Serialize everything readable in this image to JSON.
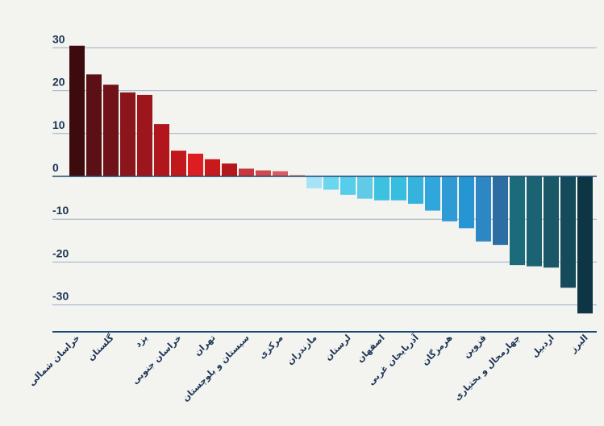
{
  "chart_data": {
    "type": "bar",
    "title": "",
    "xlabel": "",
    "ylabel": "",
    "ylim": [
      -36,
      36
    ],
    "grid": true,
    "y_ticks": [
      30,
      20,
      10,
      0,
      -10,
      -20,
      -30
    ],
    "y_tick_labels": [
      "30",
      "20",
      "10",
      "0",
      "-10",
      "-20",
      "-30"
    ],
    "categories": [
      "خراسان شمالی",
      "",
      "گلستان",
      "",
      "یزد",
      "",
      "خراسان جنوبی",
      "",
      "تهران",
      "",
      "سیستان و بلوچستان",
      "",
      "مرکزی",
      "",
      "مازندران",
      "",
      "لرستان",
      "",
      "اصفهان",
      "",
      "آذربایجان غربی",
      "",
      "هرمزگان",
      "",
      "قزوین",
      "",
      "چهارمحال و بختیاری",
      "",
      "اردبیل",
      "",
      "البرز"
    ],
    "values": [
      30.5,
      23.8,
      21.4,
      19.6,
      19.0,
      12.2,
      6.0,
      5.3,
      4.0,
      3.0,
      1.8,
      1.4,
      1.2,
      0.3,
      -2.8,
      -3.1,
      -4.3,
      -5.2,
      -5.6,
      -5.6,
      -6.4,
      -8.0,
      -10.5,
      -12.1,
      -15.2,
      -16.0,
      -20.7,
      -21.0,
      -21.3,
      -26.0,
      -32.0
    ],
    "colors": [
      "#3d0a0d",
      "#5a1014",
      "#6f1318",
      "#8a151a",
      "#9d161b",
      "#b0161b",
      "#c1181c",
      "#dd1d20",
      "#c8191c",
      "#b4181b",
      "#c7373d",
      "#d24a50",
      "#d95a61",
      "#e17f86",
      "#a7e3f7",
      "#6ad6f0",
      "#57cdec",
      "#5fcbe6",
      "#3cc2e0",
      "#36bddf",
      "#36b3dc",
      "#2fa7dc",
      "#2f9bd4",
      "#2596d2",
      "#2e87c5",
      "#2c6ea4",
      "#1c6b7a",
      "#1b6272",
      "#1a5868",
      "#144a5a",
      "#0e3544"
    ],
    "text_color": "#1d3557",
    "grid_color": "#9bb0c6",
    "axis_color": "#1a4a73"
  }
}
